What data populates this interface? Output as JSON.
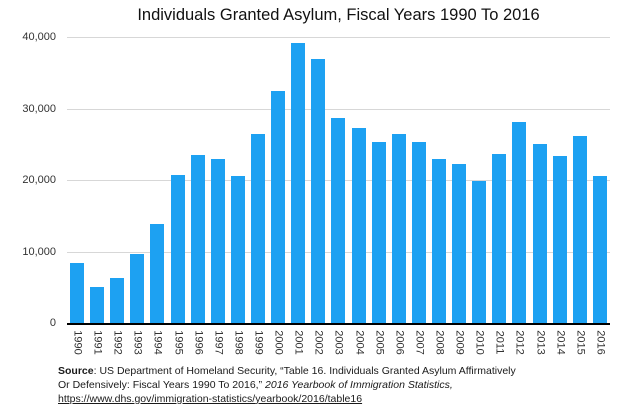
{
  "chart_data": {
    "type": "bar",
    "title": "Individuals Granted Asylum, Fiscal Years 1990 To 2016",
    "categories": [
      "1990",
      "1991",
      "1992",
      "1993",
      "1994",
      "1995",
      "1996",
      "1997",
      "1998",
      "1999",
      "2000",
      "2001",
      "2002",
      "2003",
      "2004",
      "2005",
      "2006",
      "2007",
      "2008",
      "2009",
      "2010",
      "2011",
      "2012",
      "2013",
      "2014",
      "2015",
      "2016"
    ],
    "values": [
      8400,
      5000,
      6300,
      9600,
      13800,
      20700,
      23500,
      22900,
      20600,
      26500,
      32500,
      39200,
      36900,
      28700,
      27300,
      25300,
      26400,
      25300,
      23000,
      22300,
      19800,
      23600,
      28100,
      25100,
      23300,
      26100,
      20500
    ],
    "xlabel": "",
    "ylabel": "",
    "ylim": [
      0,
      40000
    ],
    "yticks": [
      0,
      10000,
      20000,
      30000,
      40000
    ],
    "ytick_labels": [
      "0",
      "10,000",
      "20,000",
      "30,000",
      "40,000"
    ],
    "grid": true,
    "legend_position": "none",
    "bar_color": "#1da1f2",
    "gridline_color": "#d7d7d7",
    "axis_color": "#000000"
  },
  "footer": {
    "source_label": "Source",
    "line1_text": ": US Department of Homeland Security, “Table 16. Individuals Granted Asylum Affirmatively",
    "line2_regular": "Or Defensively: Fiscal Years 1990 To 2016,” ",
    "line2_italic": "2016 Yearbook of Immigration Statistics,",
    "link_text": "https://www.dhs.gov/immigration-statistics/yearbook/2016/table16"
  }
}
